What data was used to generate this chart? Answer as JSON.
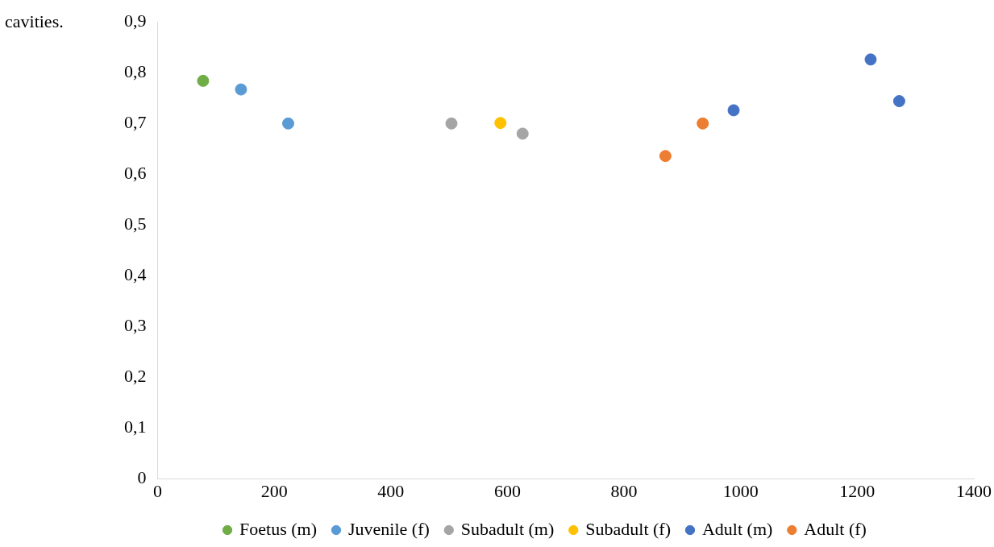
{
  "chart_data": {
    "type": "scatter",
    "annotations": [
      "cavities."
    ],
    "xlim": [
      0,
      1400
    ],
    "xticks": [
      0,
      200,
      400,
      600,
      800,
      1000,
      1200,
      1400
    ],
    "ylim": [
      0,
      0.9
    ],
    "yticks": [
      {
        "value": 0,
        "label": "0"
      },
      {
        "value": 0.1,
        "label": "0,1"
      },
      {
        "value": 0.2,
        "label": "0,2"
      },
      {
        "value": 0.3,
        "label": "0,3"
      },
      {
        "value": 0.4,
        "label": "0,4"
      },
      {
        "value": 0.5,
        "label": "0,5"
      },
      {
        "value": 0.6,
        "label": "0,6"
      },
      {
        "value": 0.7,
        "label": "0,7"
      },
      {
        "value": 0.8,
        "label": "0,8"
      },
      {
        "value": 0.9,
        "label": "0,9"
      }
    ],
    "grid": false,
    "legend": "bottom",
    "marker": "circle",
    "series": [
      {
        "name": "Foetus (m)",
        "color": "#70ad47",
        "x": [
          78
        ],
        "values": [
          0.784
        ]
      },
      {
        "name": "Juvenile (f)",
        "color": "#5b9bd5",
        "x": [
          143,
          224
        ],
        "values": [
          0.767,
          0.7
        ]
      },
      {
        "name": "Subadult (m)",
        "color": "#a5a5a5",
        "x": [
          504,
          626
        ],
        "values": [
          0.7,
          0.68
        ]
      },
      {
        "name": "Subadult (f)",
        "color": "#ffc000",
        "x": [
          588
        ],
        "values": [
          0.701
        ]
      },
      {
        "name": "Adult (m)",
        "color": "#4472c4",
        "x": [
          988,
          1223,
          1272
        ],
        "values": [
          0.726,
          0.826,
          0.744
        ]
      },
      {
        "name": "Adult (f)",
        "color": "#ed7d31",
        "x": [
          871,
          935
        ],
        "values": [
          0.636,
          0.7
        ]
      }
    ]
  }
}
